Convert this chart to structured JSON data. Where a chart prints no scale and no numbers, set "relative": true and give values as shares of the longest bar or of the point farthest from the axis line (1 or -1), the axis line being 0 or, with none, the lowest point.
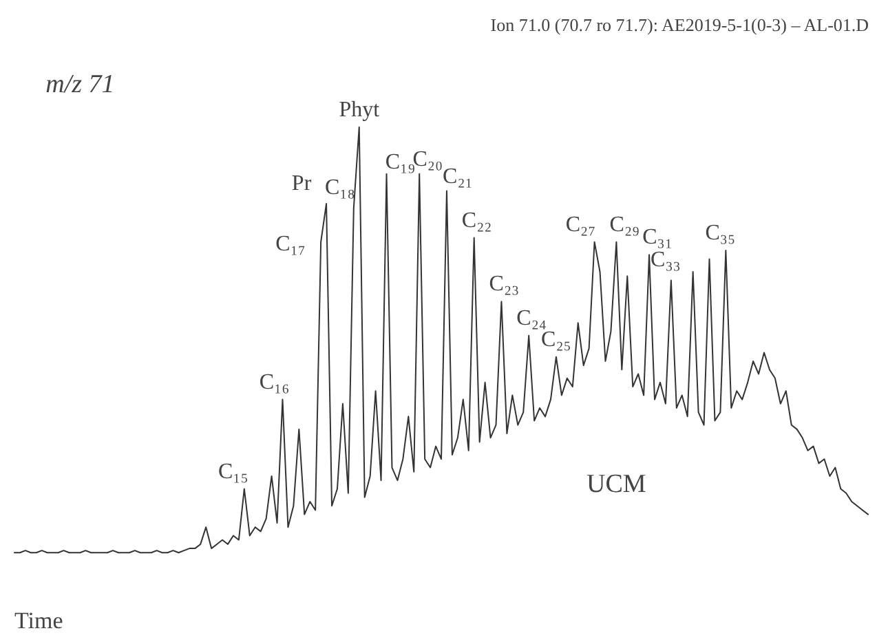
{
  "chart_data": {
    "type": "line",
    "relative": true,
    "title": "Ion 71.0 (70.7 ro 71.7): AE2019-5-1(0-3) – AL-01.D",
    "xlabel": "Time",
    "categories": [
      null,
      null,
      null,
      null,
      null,
      null,
      null,
      null,
      null,
      null,
      null,
      null,
      null,
      null,
      null,
      null,
      null,
      null,
      null,
      null,
      null,
      null,
      null,
      null,
      null,
      null,
      null,
      null,
      null,
      null,
      null,
      null,
      null,
      null,
      null,
      null,
      null,
      null,
      null,
      null,
      null,
      null,
      null,
      null,
      null,
      null,
      null,
      null,
      null,
      null,
      null,
      null,
      null,
      null,
      null,
      null,
      null,
      null,
      null,
      null,
      null,
      null,
      null,
      null,
      null,
      null,
      null,
      null,
      null,
      null,
      null,
      null,
      null,
      null,
      null,
      null,
      null,
      null,
      null,
      null,
      null,
      null,
      null,
      null,
      null,
      null,
      null,
      null,
      null,
      null,
      null,
      null,
      null,
      null,
      null,
      null,
      null,
      null,
      null,
      null,
      null,
      null,
      null,
      null,
      null,
      null,
      null,
      null,
      null,
      null,
      null,
      null,
      null,
      null,
      null,
      null,
      null,
      null,
      null,
      null,
      null,
      null,
      null,
      null,
      null,
      null,
      null,
      null,
      null,
      null,
      null,
      null,
      null,
      null,
      null,
      null,
      null,
      null,
      null,
      null,
      null,
      null,
      null,
      null,
      null,
      null,
      null,
      null,
      null,
      null,
      null,
      null,
      null,
      null,
      null,
      null,
      null
    ],
    "series": [
      {
        "color": "#333333",
        "values": [
          0,
          0,
          0.005,
          0,
          0,
          0.005,
          0,
          0,
          0,
          0.005,
          0,
          0,
          0,
          0.005,
          0,
          0,
          0,
          0,
          0.005,
          0,
          0,
          0,
          0.005,
          0,
          0,
          0,
          0.005,
          0,
          0,
          0.005,
          0,
          0.005,
          0.01,
          0.01,
          0.02,
          0.06,
          0.01,
          0.02,
          0.03,
          0.02,
          0.04,
          0.03,
          0.15,
          0.04,
          0.06,
          0.05,
          0.08,
          0.18,
          0.07,
          0.36,
          0.06,
          0.11,
          0.29,
          0.09,
          0.12,
          0.1,
          0.73,
          0.82,
          0.11,
          0.15,
          0.35,
          0.14,
          0.81,
          1.0,
          0.13,
          0.18,
          0.38,
          0.17,
          0.89,
          0.2,
          0.17,
          0.22,
          0.32,
          0.19,
          0.89,
          0.22,
          0.2,
          0.25,
          0.22,
          0.85,
          0.23,
          0.27,
          0.36,
          0.24,
          0.74,
          0.26,
          0.4,
          0.27,
          0.3,
          0.59,
          0.28,
          0.37,
          0.3,
          0.33,
          0.51,
          0.31,
          0.34,
          0.32,
          0.36,
          0.46,
          0.37,
          0.41,
          0.39,
          0.54,
          0.44,
          0.48,
          0.73,
          0.66,
          0.45,
          0.52,
          0.73,
          0.43,
          0.65,
          0.39,
          0.42,
          0.37,
          0.7,
          0.36,
          0.4,
          0.35,
          0.64,
          0.34,
          0.37,
          0.32,
          0.66,
          0.33,
          0.3,
          0.69,
          0.31,
          0.33,
          0.71,
          0.34,
          0.38,
          0.36,
          0.4,
          0.45,
          0.42,
          0.47,
          0.43,
          0.41,
          0.35,
          0.38,
          0.3,
          0.29,
          0.27,
          0.24,
          0.25,
          0.21,
          0.22,
          0.18,
          0.2,
          0.15,
          0.14,
          0.12,
          0.11,
          0.1,
          0.09
        ]
      }
    ],
    "annotations": [
      "C₁₅",
      "C₁₆",
      "C₁₇",
      "Pr",
      "C₁₈",
      "Phyt",
      "C₁₉",
      "C₂₀",
      "C₂₁",
      "C₂₂",
      "C₂₃",
      "C₂₄",
      "C₂₅",
      "C₂₇",
      "C₂₉",
      "C₃₁",
      "C₃₃",
      "C₃₅",
      "UCM",
      "m/z 71"
    ]
  }
}
